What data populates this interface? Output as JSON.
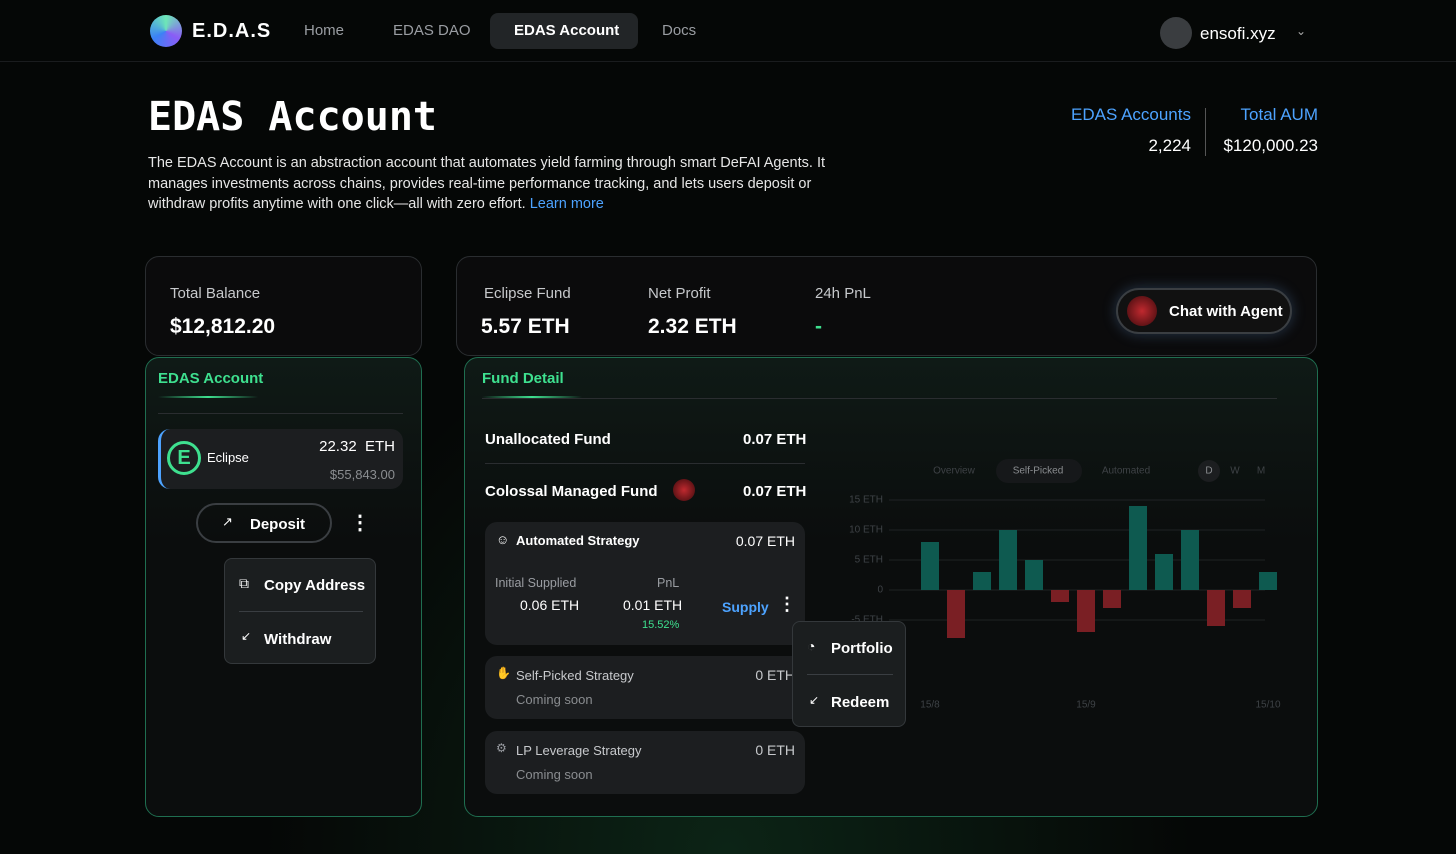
{
  "nav": {
    "brand": "E.D.A.S",
    "links": [
      "Home",
      "EDAS DAO",
      "EDAS Account",
      "Docs"
    ],
    "user": "ensofi.xyz"
  },
  "header": {
    "title": "EDAS Account",
    "description": "The EDAS Account is an abstraction account that automates yield farming through smart DeFAI Agents. It manages investments across chains, provides real-time performance tracking, and lets users deposit or withdraw profits anytime with one click—all with zero effort.",
    "link": "Learn more"
  },
  "stats": [
    {
      "label": "EDAS Accounts",
      "value": "2,224"
    },
    {
      "label": "Total AUM",
      "value": "$120,000.23"
    }
  ],
  "balance": {
    "label": "Total Balance",
    "value": "$12,812.20"
  },
  "summary": [
    {
      "label": "Eclipse Fund",
      "value": "5.57 ETH"
    },
    {
      "label": "Net Profit",
      "value": "2.32 ETH"
    },
    {
      "label": "24h PnL",
      "value": "-"
    }
  ],
  "chat_button": "Chat with Agent",
  "account": {
    "title": "EDAS Account",
    "chain": "Eclipse",
    "amount": "22.32  ETH",
    "usd": "$55,843.00",
    "deposit": "Deposit",
    "menu": [
      "Copy Address",
      "Withdraw"
    ]
  },
  "fund": {
    "title": "Fund Detail",
    "unallocated": {
      "label": "Unallocated Fund",
      "value": "0.07 ETH"
    },
    "managed": {
      "label": "Colossal Managed Fund",
      "value": "0.07 ETH"
    },
    "strategies": [
      {
        "name": "Automated Strategy",
        "value": "0.07 ETH",
        "initial_label": "Initial Supplied",
        "initial": "0.06 ETH",
        "pnl_label": "PnL",
        "pnl": "0.01 ETH",
        "pnl_pct": "15.52%",
        "action": "Supply"
      },
      {
        "name": "Self-Picked Strategy",
        "value": "0 ETH",
        "status": "Coming soon"
      },
      {
        "name": "LP Leverage Strategy",
        "value": "0 ETH",
        "status": "Coming soon"
      }
    ],
    "menu": [
      "Portfolio",
      "Redeem"
    ]
  },
  "chart": {
    "type": "bar",
    "tabs": [
      "Overview",
      "Self-Picked",
      "Automated"
    ],
    "periods": [
      "D",
      "W",
      "M"
    ],
    "categories": [
      "15/8",
      null,
      null,
      null,
      null,
      null,
      "15/9",
      null,
      null,
      null,
      null,
      null,
      null,
      "15/10"
    ],
    "values": [
      8,
      -8,
      3,
      10,
      5,
      -2,
      -7,
      -3,
      14,
      6,
      10,
      -6,
      -3,
      3
    ],
    "colors": {
      "positive": "#0e5a50",
      "negative": "#7a1f24"
    },
    "ylim": [
      -10,
      15
    ],
    "yticks": [
      {
        "value": 15,
        "label": "15 ETH"
      },
      {
        "value": 10,
        "label": "10 ETH"
      },
      {
        "value": 5,
        "label": "5 ETH"
      },
      0,
      {
        "value": -5,
        "label": "-5 ETH"
      }
    ],
    "grid": true
  }
}
